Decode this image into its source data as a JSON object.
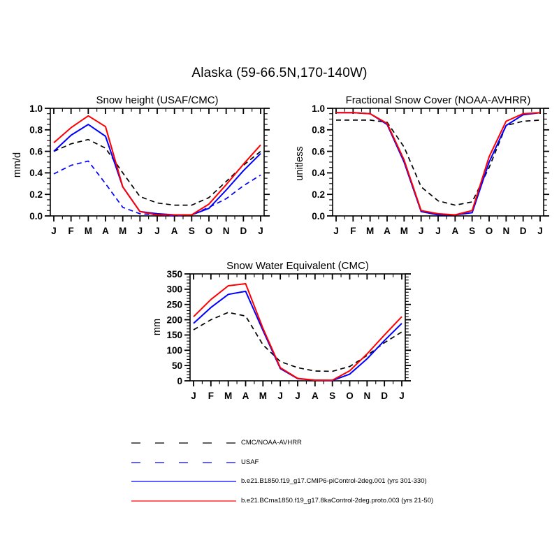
{
  "main_title": "Alaska (59-66.5N,170-140W)",
  "chart_data": [
    {
      "type": "line",
      "title": "Snow height (USAF/CMC)",
      "ylabel": "mm/d",
      "xlabel": "",
      "x_categories": [
        "J",
        "F",
        "M",
        "A",
        "M",
        "J",
        "J",
        "A",
        "S",
        "O",
        "N",
        "D",
        "J"
      ],
      "ylim": [
        0.0,
        1.0
      ],
      "yticks": [
        0.0,
        0.2,
        0.4,
        0.6,
        0.8,
        1.0
      ],
      "yticklabels": [
        "0.0",
        "0.2",
        "0.4",
        "0.6",
        "0.8",
        "1.0"
      ],
      "grid": false,
      "legend_position": "none",
      "series": [
        {
          "name": "CMC/NOAA-AVHRR",
          "color": "#000000",
          "style": "dashed",
          "values": [
            0.6,
            0.67,
            0.71,
            0.63,
            0.4,
            0.18,
            0.12,
            0.1,
            0.1,
            0.17,
            0.32,
            0.47,
            0.6
          ]
        },
        {
          "name": "USAF",
          "color": "#0000ff",
          "style": "dashed",
          "values": [
            0.39,
            0.47,
            0.51,
            0.3,
            0.08,
            0.02,
            0.01,
            0.0,
            0.01,
            0.08,
            0.16,
            0.28,
            0.38
          ]
        },
        {
          "name": "b.e21.B1850.f19_g17.CMIP6-piControl-2deg.001 (yrs 301-330)",
          "color": "#0000ff",
          "style": "solid",
          "values": [
            0.6,
            0.75,
            0.85,
            0.74,
            0.27,
            0.04,
            0.02,
            0.01,
            0.01,
            0.07,
            0.24,
            0.42,
            0.58
          ]
        },
        {
          "name": "b.e21.BCma1850.f19_g17.8kaControl-2deg.proto.003 (yrs 21-50)",
          "color": "#ff0000",
          "style": "solid",
          "values": [
            0.68,
            0.82,
            0.93,
            0.83,
            0.27,
            0.04,
            0.01,
            0.01,
            0.01,
            0.11,
            0.29,
            0.48,
            0.66
          ]
        }
      ]
    },
    {
      "type": "line",
      "title": "Fractional Snow Cover (NOAA-AVHRR)",
      "ylabel": "unitless",
      "xlabel": "",
      "x_categories": [
        "J",
        "F",
        "M",
        "A",
        "M",
        "J",
        "J",
        "A",
        "S",
        "O",
        "N",
        "D",
        "J"
      ],
      "ylim": [
        0.0,
        1.0
      ],
      "yticks": [
        0.0,
        0.2,
        0.4,
        0.6,
        0.8,
        1.0
      ],
      "yticklabels": [
        "0.0",
        "0.2",
        "0.4",
        "0.6",
        "0.8",
        "1.0"
      ],
      "grid": false,
      "legend_position": "none",
      "series": [
        {
          "name": "CMC/NOAA-AVHRR",
          "color": "#000000",
          "style": "dashed",
          "values": [
            0.89,
            0.89,
            0.89,
            0.87,
            0.64,
            0.27,
            0.14,
            0.1,
            0.13,
            0.45,
            0.84,
            0.88,
            0.89
          ]
        },
        {
          "name": "b.e21.B1850.f19_g17.CMIP6-piControl-2deg.001 (yrs 301-330)",
          "color": "#0000ff",
          "style": "solid",
          "values": [
            0.96,
            0.96,
            0.95,
            0.85,
            0.5,
            0.04,
            0.01,
            0.01,
            0.03,
            0.5,
            0.84,
            0.94,
            0.96
          ]
        },
        {
          "name": "b.e21.BCma1850.f19_g17.8kaControl-2deg.proto.003 (yrs 21-50)",
          "color": "#ff0000",
          "style": "solid",
          "values": [
            0.96,
            0.96,
            0.95,
            0.86,
            0.52,
            0.05,
            0.02,
            0.01,
            0.05,
            0.55,
            0.88,
            0.95,
            0.96
          ]
        }
      ]
    },
    {
      "type": "line",
      "title": "Snow Water Equivalent (CMC)",
      "ylabel": "mm",
      "xlabel": "",
      "x_categories": [
        "J",
        "F",
        "M",
        "A",
        "M",
        "J",
        "J",
        "A",
        "S",
        "O",
        "N",
        "D",
        "J"
      ],
      "ylim": [
        0,
        350
      ],
      "yticks": [
        0,
        50,
        100,
        150,
        200,
        250,
        300,
        350
      ],
      "yticklabels": [
        "0",
        "50",
        "100",
        "150",
        "200",
        "250",
        "300",
        "350"
      ],
      "grid": false,
      "legend_position": "none",
      "series": [
        {
          "name": "CMC/NOAA-AVHRR",
          "color": "#000000",
          "style": "dashed",
          "values": [
            167,
            200,
            224,
            212,
            118,
            63,
            43,
            32,
            31,
            47,
            83,
            125,
            160
          ]
        },
        {
          "name": "b.e21.B1850.f19_g17.CMIP6-piControl-2deg.001 (yrs 301-330)",
          "color": "#0000ff",
          "style": "solid",
          "values": [
            188,
            240,
            283,
            293,
            165,
            40,
            7,
            2,
            1,
            22,
            72,
            132,
            188
          ]
        },
        {
          "name": "b.e21.BCma1850.f19_g17.8kaControl-2deg.proto.003 (yrs 21-50)",
          "color": "#ff0000",
          "style": "solid",
          "values": [
            210,
            266,
            311,
            318,
            172,
            43,
            8,
            2,
            2,
            33,
            88,
            150,
            210
          ]
        }
      ]
    }
  ],
  "legend": {
    "entries": [
      {
        "label": "CMC/NOAA-AVHRR",
        "color": "#000000",
        "style": "dashed"
      },
      {
        "label": "USAF",
        "color": "#0000ff",
        "style": "dashed"
      },
      {
        "label": "b.e21.B1850.f19_g17.CMIP6-piControl-2deg.001 (yrs 301-330)",
        "color": "#0000ff",
        "style": "solid"
      },
      {
        "label": "b.e21.BCma1850.f19_g17.8kaControl-2deg.proto.003 (yrs 21-50)",
        "color": "#ff0000",
        "style": "solid"
      }
    ]
  }
}
